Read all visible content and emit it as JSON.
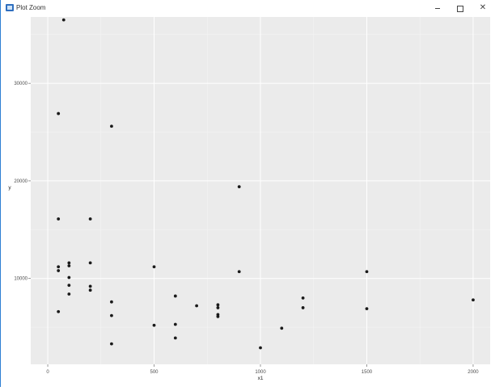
{
  "window": {
    "title": "Plot Zoom",
    "minimize_symbol": "–",
    "maximize_icon": "maximize-icon",
    "close_symbol": "✕"
  },
  "chart_data": {
    "type": "scatter",
    "title": "",
    "xlabel": "x1",
    "ylabel": "y",
    "xlim": [
      -80,
      2080
    ],
    "ylim": [
      1200,
      36800
    ],
    "xticks": [
      0,
      500,
      1000,
      1500,
      2000
    ],
    "xtick_labels": [
      "0",
      "500",
      "1000",
      "1500",
      "2000"
    ],
    "yticks": [
      10000,
      20000,
      30000
    ],
    "ytick_labels": [
      "10000",
      "20000",
      "30000"
    ],
    "grid": true,
    "panel_background": "#ebebeb",
    "grid_major_color": "#ffffff",
    "point_color": "#1a1a1a",
    "legend": "none",
    "points": [
      {
        "x": 75,
        "y": 36500
      },
      {
        "x": 50,
        "y": 26900
      },
      {
        "x": 300,
        "y": 25600
      },
      {
        "x": 900,
        "y": 19400
      },
      {
        "x": 50,
        "y": 16100
      },
      {
        "x": 200,
        "y": 16100
      },
      {
        "x": 100,
        "y": 11600
      },
      {
        "x": 200,
        "y": 11600
      },
      {
        "x": 100,
        "y": 11300
      },
      {
        "x": 50,
        "y": 11200
      },
      {
        "x": 500,
        "y": 11200
      },
      {
        "x": 50,
        "y": 10800
      },
      {
        "x": 900,
        "y": 10700
      },
      {
        "x": 1500,
        "y": 10700
      },
      {
        "x": 100,
        "y": 10100
      },
      {
        "x": 100,
        "y": 9300
      },
      {
        "x": 200,
        "y": 9200
      },
      {
        "x": 200,
        "y": 8800
      },
      {
        "x": 100,
        "y": 8400
      },
      {
        "x": 600,
        "y": 8200
      },
      {
        "x": 1200,
        "y": 8000
      },
      {
        "x": 2000,
        "y": 7800
      },
      {
        "x": 300,
        "y": 7600
      },
      {
        "x": 700,
        "y": 7200
      },
      {
        "x": 800,
        "y": 7300
      },
      {
        "x": 800,
        "y": 7000
      },
      {
        "x": 1200,
        "y": 7000
      },
      {
        "x": 1500,
        "y": 6900
      },
      {
        "x": 50,
        "y": 6600
      },
      {
        "x": 300,
        "y": 6200
      },
      {
        "x": 800,
        "y": 6300
      },
      {
        "x": 800,
        "y": 6100
      },
      {
        "x": 500,
        "y": 5200
      },
      {
        "x": 600,
        "y": 5300
      },
      {
        "x": 1100,
        "y": 4900
      },
      {
        "x": 600,
        "y": 3900
      },
      {
        "x": 300,
        "y": 3300
      },
      {
        "x": 1000,
        "y": 2900
      }
    ]
  }
}
